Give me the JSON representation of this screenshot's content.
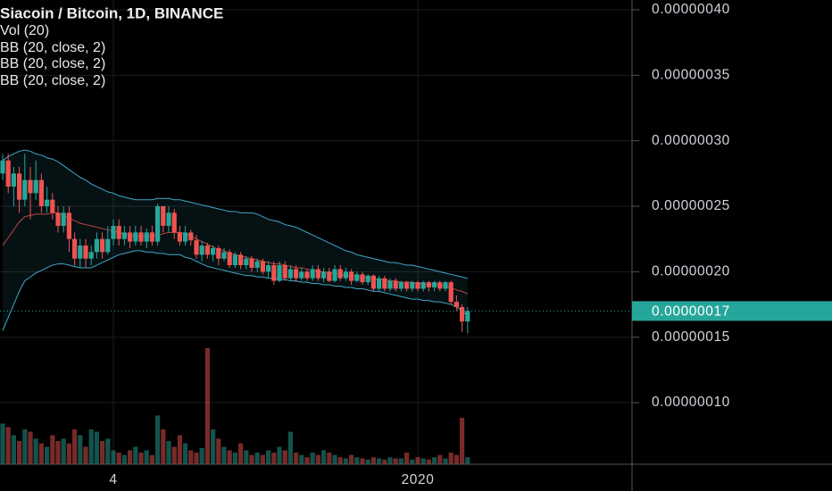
{
  "chart_data": {
    "type": "candlestick",
    "title": "Siacoin / Bitcoin, 1D, BINANCE",
    "indicators": [
      "Vol (20)",
      "BB (20, close, 2)",
      "BB (20, close, 2)",
      "BB (20, close, 2)"
    ],
    "categories": [
      null,
      null,
      null,
      null,
      null,
      null,
      null,
      null,
      null,
      null,
      null,
      null,
      null,
      null,
      null,
      null,
      null,
      null,
      null,
      null,
      "4",
      null,
      null,
      null,
      null,
      null,
      null,
      null,
      null,
      null,
      null,
      null,
      null,
      null,
      null,
      null,
      null,
      null,
      null,
      null,
      null,
      null,
      null,
      null,
      null,
      null,
      null,
      null,
      null,
      null,
      null,
      null,
      null,
      null,
      null,
      null,
      null,
      null,
      null,
      null,
      null,
      null,
      null,
      null,
      null,
      null,
      null,
      null,
      null,
      null,
      null,
      null,
      null,
      null,
      null,
      "2020",
      null,
      null,
      null,
      null,
      null,
      null,
      null,
      null,
      null
    ],
    "open": [
      2.75e-07,
      2.85e-07,
      2.65e-07,
      2.75e-07,
      2.55e-07,
      2.7e-07,
      2.6e-07,
      2.7e-07,
      2.5e-07,
      2.55e-07,
      2.45e-07,
      2.35e-07,
      2.45e-07,
      2.25e-07,
      2.1e-07,
      2.2e-07,
      2.1e-07,
      2.15e-07,
      2.25e-07,
      2.15e-07,
      2.25e-07,
      2.35e-07,
      2.25e-07,
      2.3e-07,
      2.23e-07,
      2.3e-07,
      2.23e-07,
      2.3e-07,
      2.23e-07,
      2.5e-07,
      2.35e-07,
      2.45e-07,
      2.3e-07,
      2.23e-07,
      2.3e-07,
      2.24e-07,
      2.13e-07,
      2.2e-07,
      2.13e-07,
      2.18e-07,
      2.1e-07,
      2.15e-07,
      2.05e-07,
      2.13e-07,
      2.05e-07,
      2.1e-07,
      2.03e-07,
      2.08e-07,
      2e-07,
      2.05e-07,
      1.93e-07,
      2.05e-07,
      1.95e-07,
      2.02e-07,
      1.95e-07,
      2e-07,
      1.95e-07,
      2.02e-07,
      1.95e-07,
      2e-07,
      1.93e-07,
      2.02e-07,
      1.95e-07,
      2e-07,
      1.93e-07,
      1.98e-07,
      1.92e-07,
      1.97e-07,
      1.87e-07,
      1.95e-07,
      1.87e-07,
      1.93e-07,
      1.87e-07,
      1.92e-07,
      1.87e-07,
      1.92e-07,
      1.87e-07,
      1.92e-07,
      1.88e-07,
      1.92e-07,
      1.87e-07,
      1.92e-07,
      1.77e-07,
      1.73e-07,
      1.62e-07
    ],
    "high": [
      2.9e-07,
      2.9e-07,
      2.8e-07,
      2.8e-07,
      2.9e-07,
      2.8e-07,
      2.85e-07,
      2.75e-07,
      2.65e-07,
      2.6e-07,
      2.5e-07,
      2.5e-07,
      2.5e-07,
      2.3e-07,
      2.25e-07,
      2.25e-07,
      2.2e-07,
      2.3e-07,
      2.3e-07,
      2.35e-07,
      2.4e-07,
      2.4e-07,
      2.35e-07,
      2.35e-07,
      2.35e-07,
      2.35e-07,
      2.33e-07,
      2.35e-07,
      2.52e-07,
      2.5e-07,
      2.5e-07,
      2.48e-07,
      2.35e-07,
      2.35e-07,
      2.32e-07,
      2.28e-07,
      2.23e-07,
      2.22e-07,
      2.2e-07,
      2.2e-07,
      2.18e-07,
      2.17e-07,
      2.15e-07,
      2.15e-07,
      2.12e-07,
      2.12e-07,
      2.1e-07,
      2.1e-07,
      2.08e-07,
      2.08e-07,
      2.08e-07,
      2.08e-07,
      2.05e-07,
      2.05e-07,
      2.03e-07,
      2.02e-07,
      2.05e-07,
      2.05e-07,
      2.03e-07,
      2.03e-07,
      2.05e-07,
      2.05e-07,
      2.03e-07,
      2.02e-07,
      2e-07,
      2e-07,
      1.98e-07,
      1.98e-07,
      1.97e-07,
      1.97e-07,
      1.95e-07,
      1.95e-07,
      1.93e-07,
      1.93e-07,
      1.93e-07,
      1.93e-07,
      1.93e-07,
      1.93e-07,
      1.93e-07,
      1.93e-07,
      1.93e-07,
      1.93e-07,
      1.82e-07,
      1.75e-07,
      1.73e-07
    ],
    "low": [
      2.7e-07,
      2.6e-07,
      2.5e-07,
      2.45e-07,
      2.5e-07,
      2.4e-07,
      2.55e-07,
      2.45e-07,
      2.45e-07,
      2.4e-07,
      2.3e-07,
      2.3e-07,
      2.15e-07,
      2.05e-07,
      2.03e-07,
      2.03e-07,
      2.05e-07,
      2.1e-07,
      2.1e-07,
      2.13e-07,
      2.2e-07,
      2.2e-07,
      2.2e-07,
      2.18e-07,
      2.2e-07,
      2.2e-07,
      2.18e-07,
      2.2e-07,
      2.2e-07,
      2.3e-07,
      2.3e-07,
      2.25e-07,
      2.2e-07,
      2.2e-07,
      2.2e-07,
      2.1e-07,
      2.08e-07,
      2.1e-07,
      2.08e-07,
      2.05e-07,
      2.08e-07,
      2.03e-07,
      2.03e-07,
      2.02e-07,
      2.02e-07,
      2e-07,
      2e-07,
      1.98e-07,
      1.95e-07,
      1.9e-07,
      1.92e-07,
      1.93e-07,
      1.93e-07,
      1.92e-07,
      1.93e-07,
      1.93e-07,
      1.93e-07,
      1.93e-07,
      1.92e-07,
      1.92e-07,
      1.92e-07,
      1.93e-07,
      1.93e-07,
      1.9e-07,
      1.92e-07,
      1.9e-07,
      1.9e-07,
      1.85e-07,
      1.85e-07,
      1.85e-07,
      1.85e-07,
      1.85e-07,
      1.85e-07,
      1.85e-07,
      1.85e-07,
      1.85e-07,
      1.85e-07,
      1.85e-07,
      1.85e-07,
      1.85e-07,
      1.85e-07,
      1.75e-07,
      1.7e-07,
      1.54e-07,
      1.53e-07
    ],
    "close": [
      2.85e-07,
      2.65e-07,
      2.75e-07,
      2.55e-07,
      2.7e-07,
      2.6e-07,
      2.7e-07,
      2.5e-07,
      2.55e-07,
      2.45e-07,
      2.35e-07,
      2.45e-07,
      2.25e-07,
      2.1e-07,
      2.2e-07,
      2.1e-07,
      2.15e-07,
      2.25e-07,
      2.15e-07,
      2.25e-07,
      2.35e-07,
      2.25e-07,
      2.3e-07,
      2.23e-07,
      2.3e-07,
      2.23e-07,
      2.3e-07,
      2.23e-07,
      2.5e-07,
      2.35e-07,
      2.45e-07,
      2.3e-07,
      2.23e-07,
      2.3e-07,
      2.24e-07,
      2.13e-07,
      2.2e-07,
      2.13e-07,
      2.18e-07,
      2.1e-07,
      2.15e-07,
      2.05e-07,
      2.13e-07,
      2.05e-07,
      2.1e-07,
      2.03e-07,
      2.08e-07,
      2e-07,
      2.05e-07,
      1.93e-07,
      2.05e-07,
      1.95e-07,
      2.02e-07,
      1.95e-07,
      2e-07,
      1.95e-07,
      2.02e-07,
      1.95e-07,
      2e-07,
      1.93e-07,
      2.02e-07,
      1.95e-07,
      2e-07,
      1.93e-07,
      1.98e-07,
      1.92e-07,
      1.97e-07,
      1.87e-07,
      1.95e-07,
      1.87e-07,
      1.93e-07,
      1.87e-07,
      1.92e-07,
      1.87e-07,
      1.92e-07,
      1.87e-07,
      1.92e-07,
      1.88e-07,
      1.92e-07,
      1.87e-07,
      1.92e-07,
      1.77e-07,
      1.73e-07,
      1.62e-07,
      1.7e-07
    ],
    "volume": [
      35,
      32,
      25,
      20,
      30,
      28,
      22,
      18,
      15,
      25,
      20,
      22,
      18,
      30,
      25,
      15,
      30,
      28,
      20,
      22,
      12,
      10,
      8,
      12,
      15,
      10,
      12,
      8,
      42,
      30,
      20,
      15,
      25,
      18,
      12,
      10,
      14,
      100,
      30,
      22,
      15,
      12,
      10,
      18,
      12,
      8,
      10,
      8,
      12,
      10,
      15,
      12,
      28,
      10,
      8,
      6,
      10,
      8,
      12,
      10,
      8,
      6,
      5,
      8,
      6,
      5,
      4,
      6,
      5,
      4,
      6,
      5,
      5,
      10,
      4,
      6,
      5,
      4,
      6,
      8,
      5,
      10,
      8,
      40,
      6
    ],
    "bb_upper": [
      2.85e-07,
      2.88e-07,
      2.9e-07,
      2.92e-07,
      2.93e-07,
      2.92e-07,
      2.9e-07,
      2.89e-07,
      2.87e-07,
      2.86e-07,
      2.84e-07,
      2.81e-07,
      2.78e-07,
      2.75e-07,
      2.72e-07,
      2.7e-07,
      2.67e-07,
      2.65e-07,
      2.63e-07,
      2.61e-07,
      2.6e-07,
      2.58e-07,
      2.57e-07,
      2.56e-07,
      2.55e-07,
      2.55e-07,
      2.55e-07,
      2.55e-07,
      2.56e-07,
      2.56e-07,
      2.56e-07,
      2.55e-07,
      2.55e-07,
      2.54e-07,
      2.53e-07,
      2.52e-07,
      2.51e-07,
      2.5e-07,
      2.49e-07,
      2.48e-07,
      2.47e-07,
      2.46e-07,
      2.46e-07,
      2.45e-07,
      2.45e-07,
      2.45e-07,
      2.44e-07,
      2.42e-07,
      2.4e-07,
      2.39e-07,
      2.38e-07,
      2.36e-07,
      2.35e-07,
      2.34e-07,
      2.32e-07,
      2.3e-07,
      2.28e-07,
      2.26e-07,
      2.24e-07,
      2.22e-07,
      2.2e-07,
      2.18e-07,
      2.16e-07,
      2.15e-07,
      2.13e-07,
      2.12e-07,
      2.11e-07,
      2.1e-07,
      2.09e-07,
      2.08e-07,
      2.07e-07,
      2.07e-07,
      2.06e-07,
      2.05e-07,
      2.05e-07,
      2.04e-07,
      2.03e-07,
      2.02e-07,
      2.01e-07,
      2e-07,
      1.99e-07,
      1.98e-07,
      1.97e-07,
      1.96e-07,
      1.95e-07
    ],
    "bb_basis": [
      2.2e-07,
      2.26e-07,
      2.32e-07,
      2.38e-07,
      2.42e-07,
      2.43e-07,
      2.44e-07,
      2.44e-07,
      2.44e-07,
      2.45e-07,
      2.45e-07,
      2.43e-07,
      2.41e-07,
      2.39e-07,
      2.37e-07,
      2.36e-07,
      2.35e-07,
      2.34e-07,
      2.33e-07,
      2.32e-07,
      2.31e-07,
      2.3e-07,
      2.29e-07,
      2.28e-07,
      2.27e-07,
      2.27e-07,
      2.27e-07,
      2.27e-07,
      2.28e-07,
      2.29e-07,
      2.3e-07,
      2.3e-07,
      2.3e-07,
      2.29e-07,
      2.27e-07,
      2.25e-07,
      2.23e-07,
      2.21e-07,
      2.19e-07,
      2.17e-07,
      2.16e-07,
      2.14e-07,
      2.13e-07,
      2.12e-07,
      2.11e-07,
      2.1e-07,
      2.09e-07,
      2.08e-07,
      2.07e-07,
      2.06e-07,
      2.06e-07,
      2.05e-07,
      2.04e-07,
      2.03e-07,
      2.03e-07,
      2.02e-07,
      2.01e-07,
      2e-07,
      2e-07,
      1.99e-07,
      1.99e-07,
      1.98e-07,
      1.97e-07,
      1.97e-07,
      1.96e-07,
      1.96e-07,
      1.95e-07,
      1.95e-07,
      1.94e-07,
      1.94e-07,
      1.93e-07,
      1.93e-07,
      1.92e-07,
      1.92e-07,
      1.92e-07,
      1.91e-07,
      1.91e-07,
      1.9e-07,
      1.9e-07,
      1.9e-07,
      1.89e-07,
      1.88e-07,
      1.86e-07,
      1.85e-07,
      1.83e-07
    ],
    "bb_lower": [
      1.55e-07,
      1.65e-07,
      1.75e-07,
      1.85e-07,
      1.93e-07,
      1.96e-07,
      1.99e-07,
      2.01e-07,
      2.03e-07,
      2.05e-07,
      2.06e-07,
      2.06e-07,
      2.05e-07,
      2.04e-07,
      2.03e-07,
      2.03e-07,
      2.03e-07,
      2.05e-07,
      2.07e-07,
      2.09e-07,
      2.11e-07,
      2.13e-07,
      2.14e-07,
      2.15e-07,
      2.16e-07,
      2.16e-07,
      2.15e-07,
      2.15e-07,
      2.14e-07,
      2.14e-07,
      2.13e-07,
      2.13e-07,
      2.13e-07,
      2.11e-07,
      2.1e-07,
      2.08e-07,
      2.06e-07,
      2.04e-07,
      2.03e-07,
      2.02e-07,
      2.01e-07,
      2e-07,
      1.99e-07,
      1.98e-07,
      1.97e-07,
      1.97e-07,
      1.96e-07,
      1.96e-07,
      1.95e-07,
      1.95e-07,
      1.94e-07,
      1.94e-07,
      1.93e-07,
      1.93e-07,
      1.92e-07,
      1.92e-07,
      1.91e-07,
      1.91e-07,
      1.9e-07,
      1.9e-07,
      1.89e-07,
      1.89e-07,
      1.88e-07,
      1.88e-07,
      1.87e-07,
      1.87e-07,
      1.86e-07,
      1.85e-07,
      1.85e-07,
      1.84e-07,
      1.83e-07,
      1.82e-07,
      1.81e-07,
      1.8e-07,
      1.79e-07,
      1.79e-07,
      1.78e-07,
      1.78e-07,
      1.77e-07,
      1.77e-07,
      1.76e-07,
      1.75e-07,
      1.73e-07,
      1.7e-07,
      1.66e-07
    ],
    "colors": {
      "up": "#26a69a",
      "down": "#ef5350",
      "band": "#3fa7c9",
      "basis": "#b9473f",
      "label": "#26a69a"
    },
    "ylim": [
      5.3e-08,
      4.075e-07
    ],
    "yticks": [
      {
        "value": 1e-07,
        "label": "0.00000010"
      },
      {
        "value": 1.5e-07,
        "label": "0.00000015"
      },
      {
        "value": 2e-07,
        "label": "0.00000020"
      },
      {
        "value": 2.5e-07,
        "label": "0.00000025"
      },
      {
        "value": 3e-07,
        "label": "0.00000030"
      },
      {
        "value": 3.5e-07,
        "label": "0.00000035"
      },
      {
        "value": 4e-07,
        "label": "0.00000040"
      }
    ],
    "last_price": {
      "value": 1.7e-07,
      "label": "0.00000017"
    },
    "grid": true
  }
}
